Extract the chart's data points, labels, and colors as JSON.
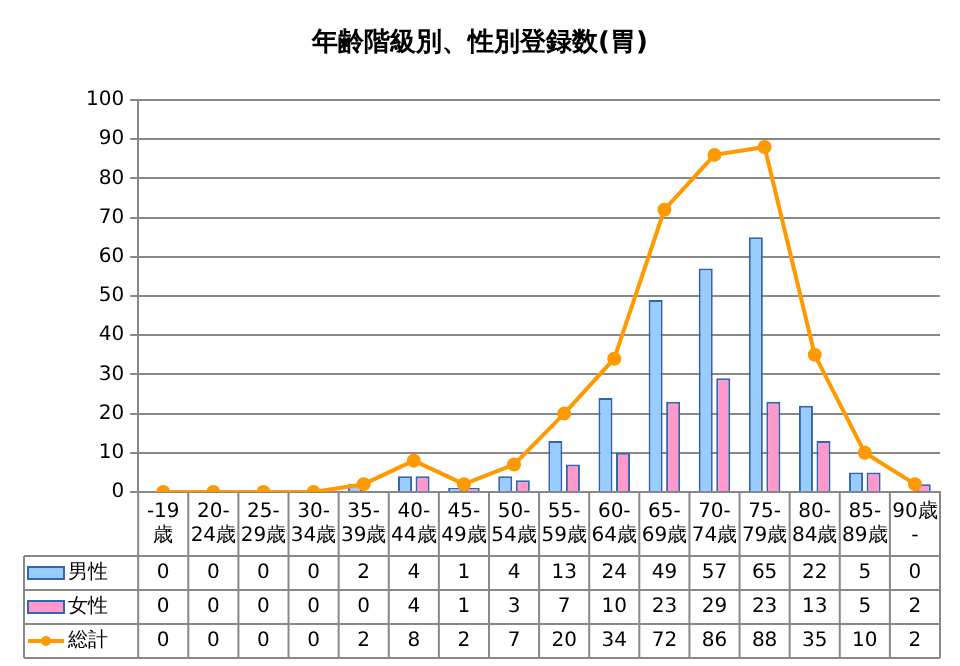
{
  "chart_data": {
    "type": "bar",
    "title": "年齢階級別、性別登録数(胃)",
    "categories": [
      "-19歳",
      "20-24歳",
      "25-29歳",
      "30-34歳",
      "35-39歳",
      "40-44歳",
      "45-49歳",
      "50-54歳",
      "55-59歳",
      "60-64歳",
      "65-69歳",
      "70-74歳",
      "75-79歳",
      "80-84歳",
      "85-89歳",
      "90歳-"
    ],
    "series": [
      {
        "name": "男性",
        "color": "#99ccff",
        "values": [
          0,
          0,
          0,
          0,
          2,
          4,
          1,
          4,
          13,
          24,
          49,
          57,
          65,
          22,
          5,
          0
        ]
      },
      {
        "name": "女性",
        "color": "#ff99cc",
        "values": [
          0,
          0,
          0,
          0,
          0,
          4,
          1,
          3,
          7,
          10,
          23,
          29,
          23,
          13,
          5,
          2
        ]
      },
      {
        "name": "総計",
        "type": "line",
        "color": "#ff9900",
        "marker": "circle",
        "values": [
          0,
          0,
          0,
          0,
          2,
          8,
          2,
          7,
          20,
          34,
          72,
          86,
          88,
          35,
          10,
          2
        ]
      }
    ],
    "ylim": [
      0,
      100
    ],
    "yticks": [
      0,
      10,
      20,
      30,
      40,
      50,
      60,
      70,
      80,
      90,
      100
    ],
    "grid": "y",
    "legend": "bottom left",
    "data_labels": true
  }
}
